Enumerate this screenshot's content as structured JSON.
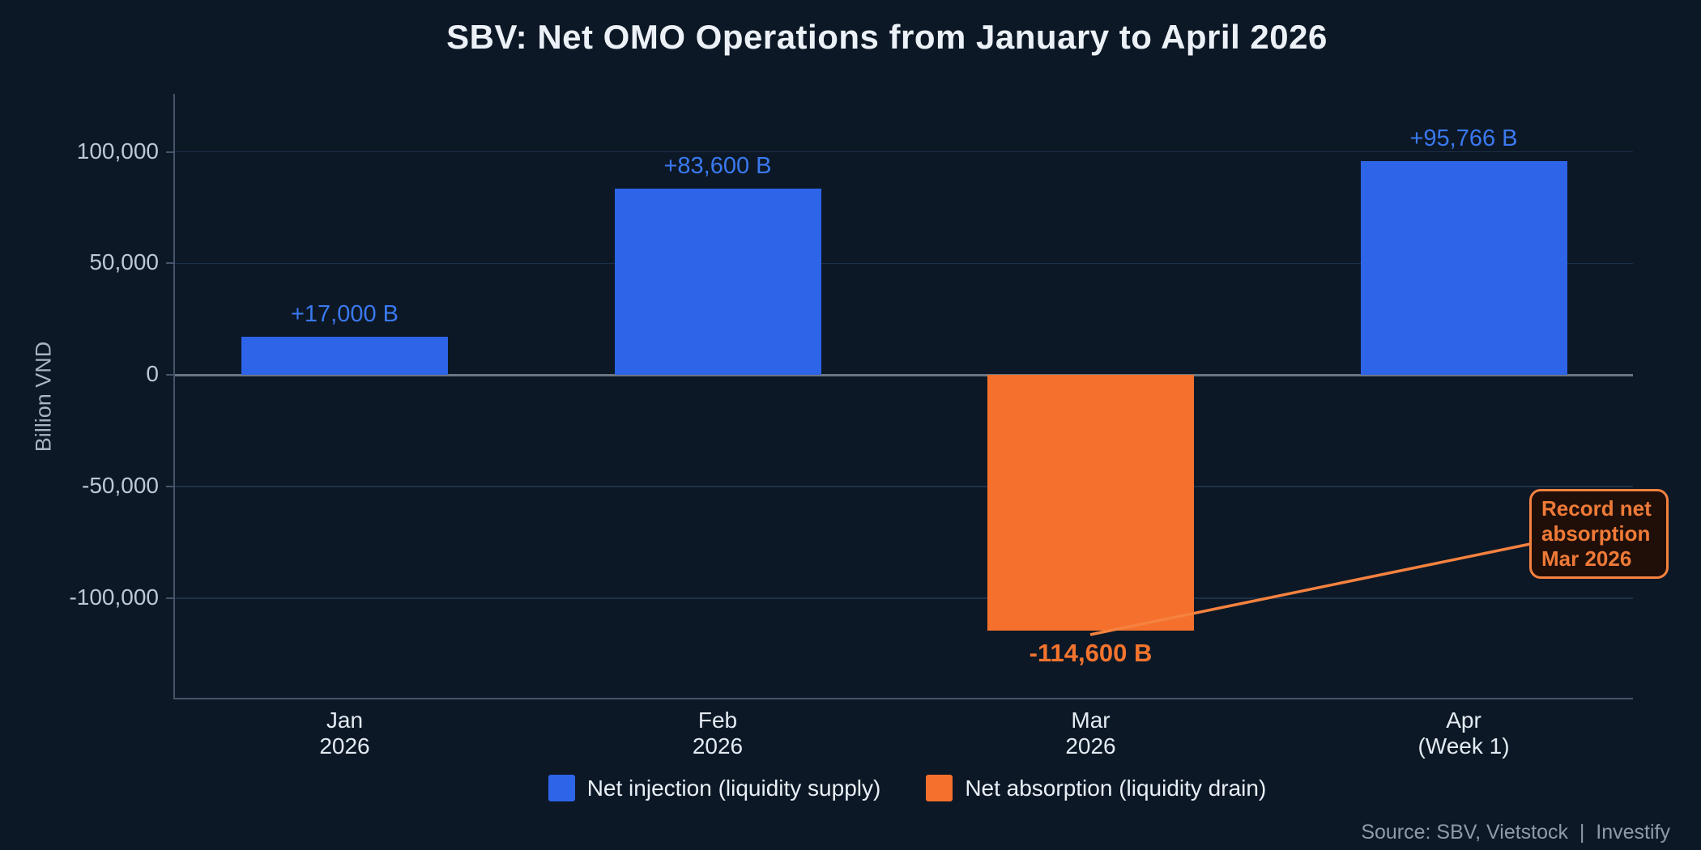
{
  "chart_data": {
    "type": "bar",
    "title": "SBV: Net OMO Operations from January to April 2026",
    "ylabel": "Billion VND",
    "xlabel": "",
    "ylim": [
      -145000,
      126000
    ],
    "grid": true,
    "legend_position": "bottom",
    "yticks": [
      {
        "value": 100000,
        "label": "100,000"
      },
      {
        "value": 50000,
        "label": "50,000"
      },
      {
        "value": 0,
        "label": "0"
      },
      {
        "value": -50000,
        "label": "-50,000"
      },
      {
        "value": -100000,
        "label": "-100,000"
      }
    ],
    "categories": [
      "Jan\n2026",
      "Feb\n2026",
      "Mar\n2026",
      "Apr\n(Week 1)"
    ],
    "values": [
      17000,
      83600,
      -114600,
      95766
    ],
    "bar_value_labels": [
      "+17,000 B",
      "+83,600 B",
      "-114,600 B",
      "+95,766 B"
    ],
    "bar_kinds": [
      "injection",
      "injection",
      "absorption",
      "injection"
    ],
    "legend": [
      {
        "kind": "injection",
        "label": "Net injection (liquidity supply)"
      },
      {
        "kind": "absorption",
        "label": "Net absorption (liquidity drain)"
      }
    ],
    "annotation": {
      "text": "Record net\nabsorption\nMar 2026"
    },
    "source": "Source: SBV, Vietstock  |  Investify",
    "colors": {
      "background": "#0d1826",
      "injection": "#2d64e8",
      "absorption": "#f4702c",
      "injection_label": "#3a79f0",
      "absorption_label": "#f4742e",
      "grid": "#1d3049",
      "zero_line": "#6b7684",
      "axis": "#47536a",
      "annotation_border": "#f5823f",
      "annotation_text": "#ef7a38",
      "annotation_bg": "#200f08"
    }
  }
}
